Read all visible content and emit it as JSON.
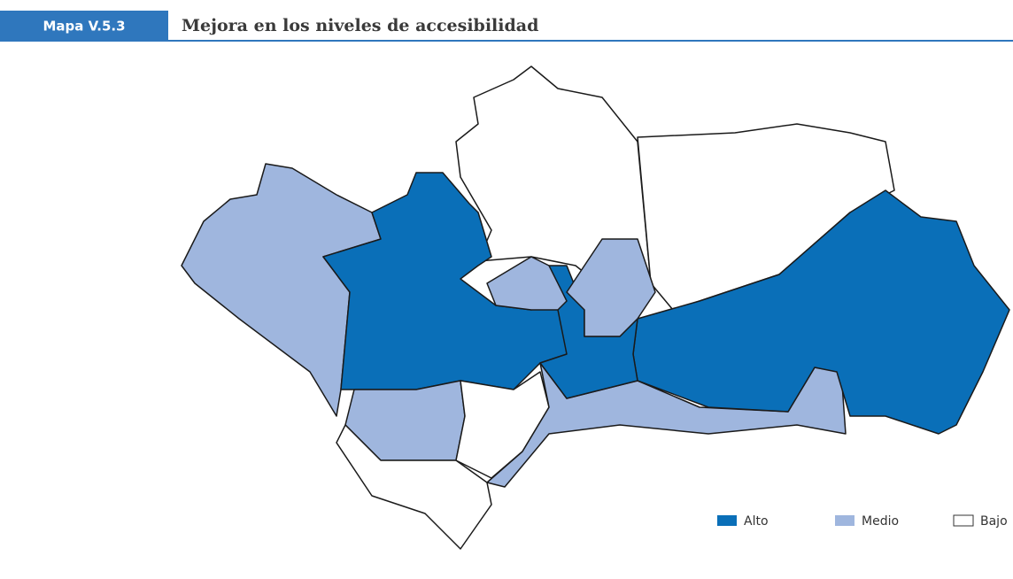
{
  "header": {
    "label": "Mapa V.5.3",
    "title": "Mejora en los niveles de accesibilidad"
  },
  "legend": [
    {
      "label": "Alto",
      "color": "#0a6fb8"
    },
    {
      "label": "Medio",
      "color": "#9fb6de"
    },
    {
      "label": "Bajo",
      "color": "#ffffff"
    }
  ]
}
